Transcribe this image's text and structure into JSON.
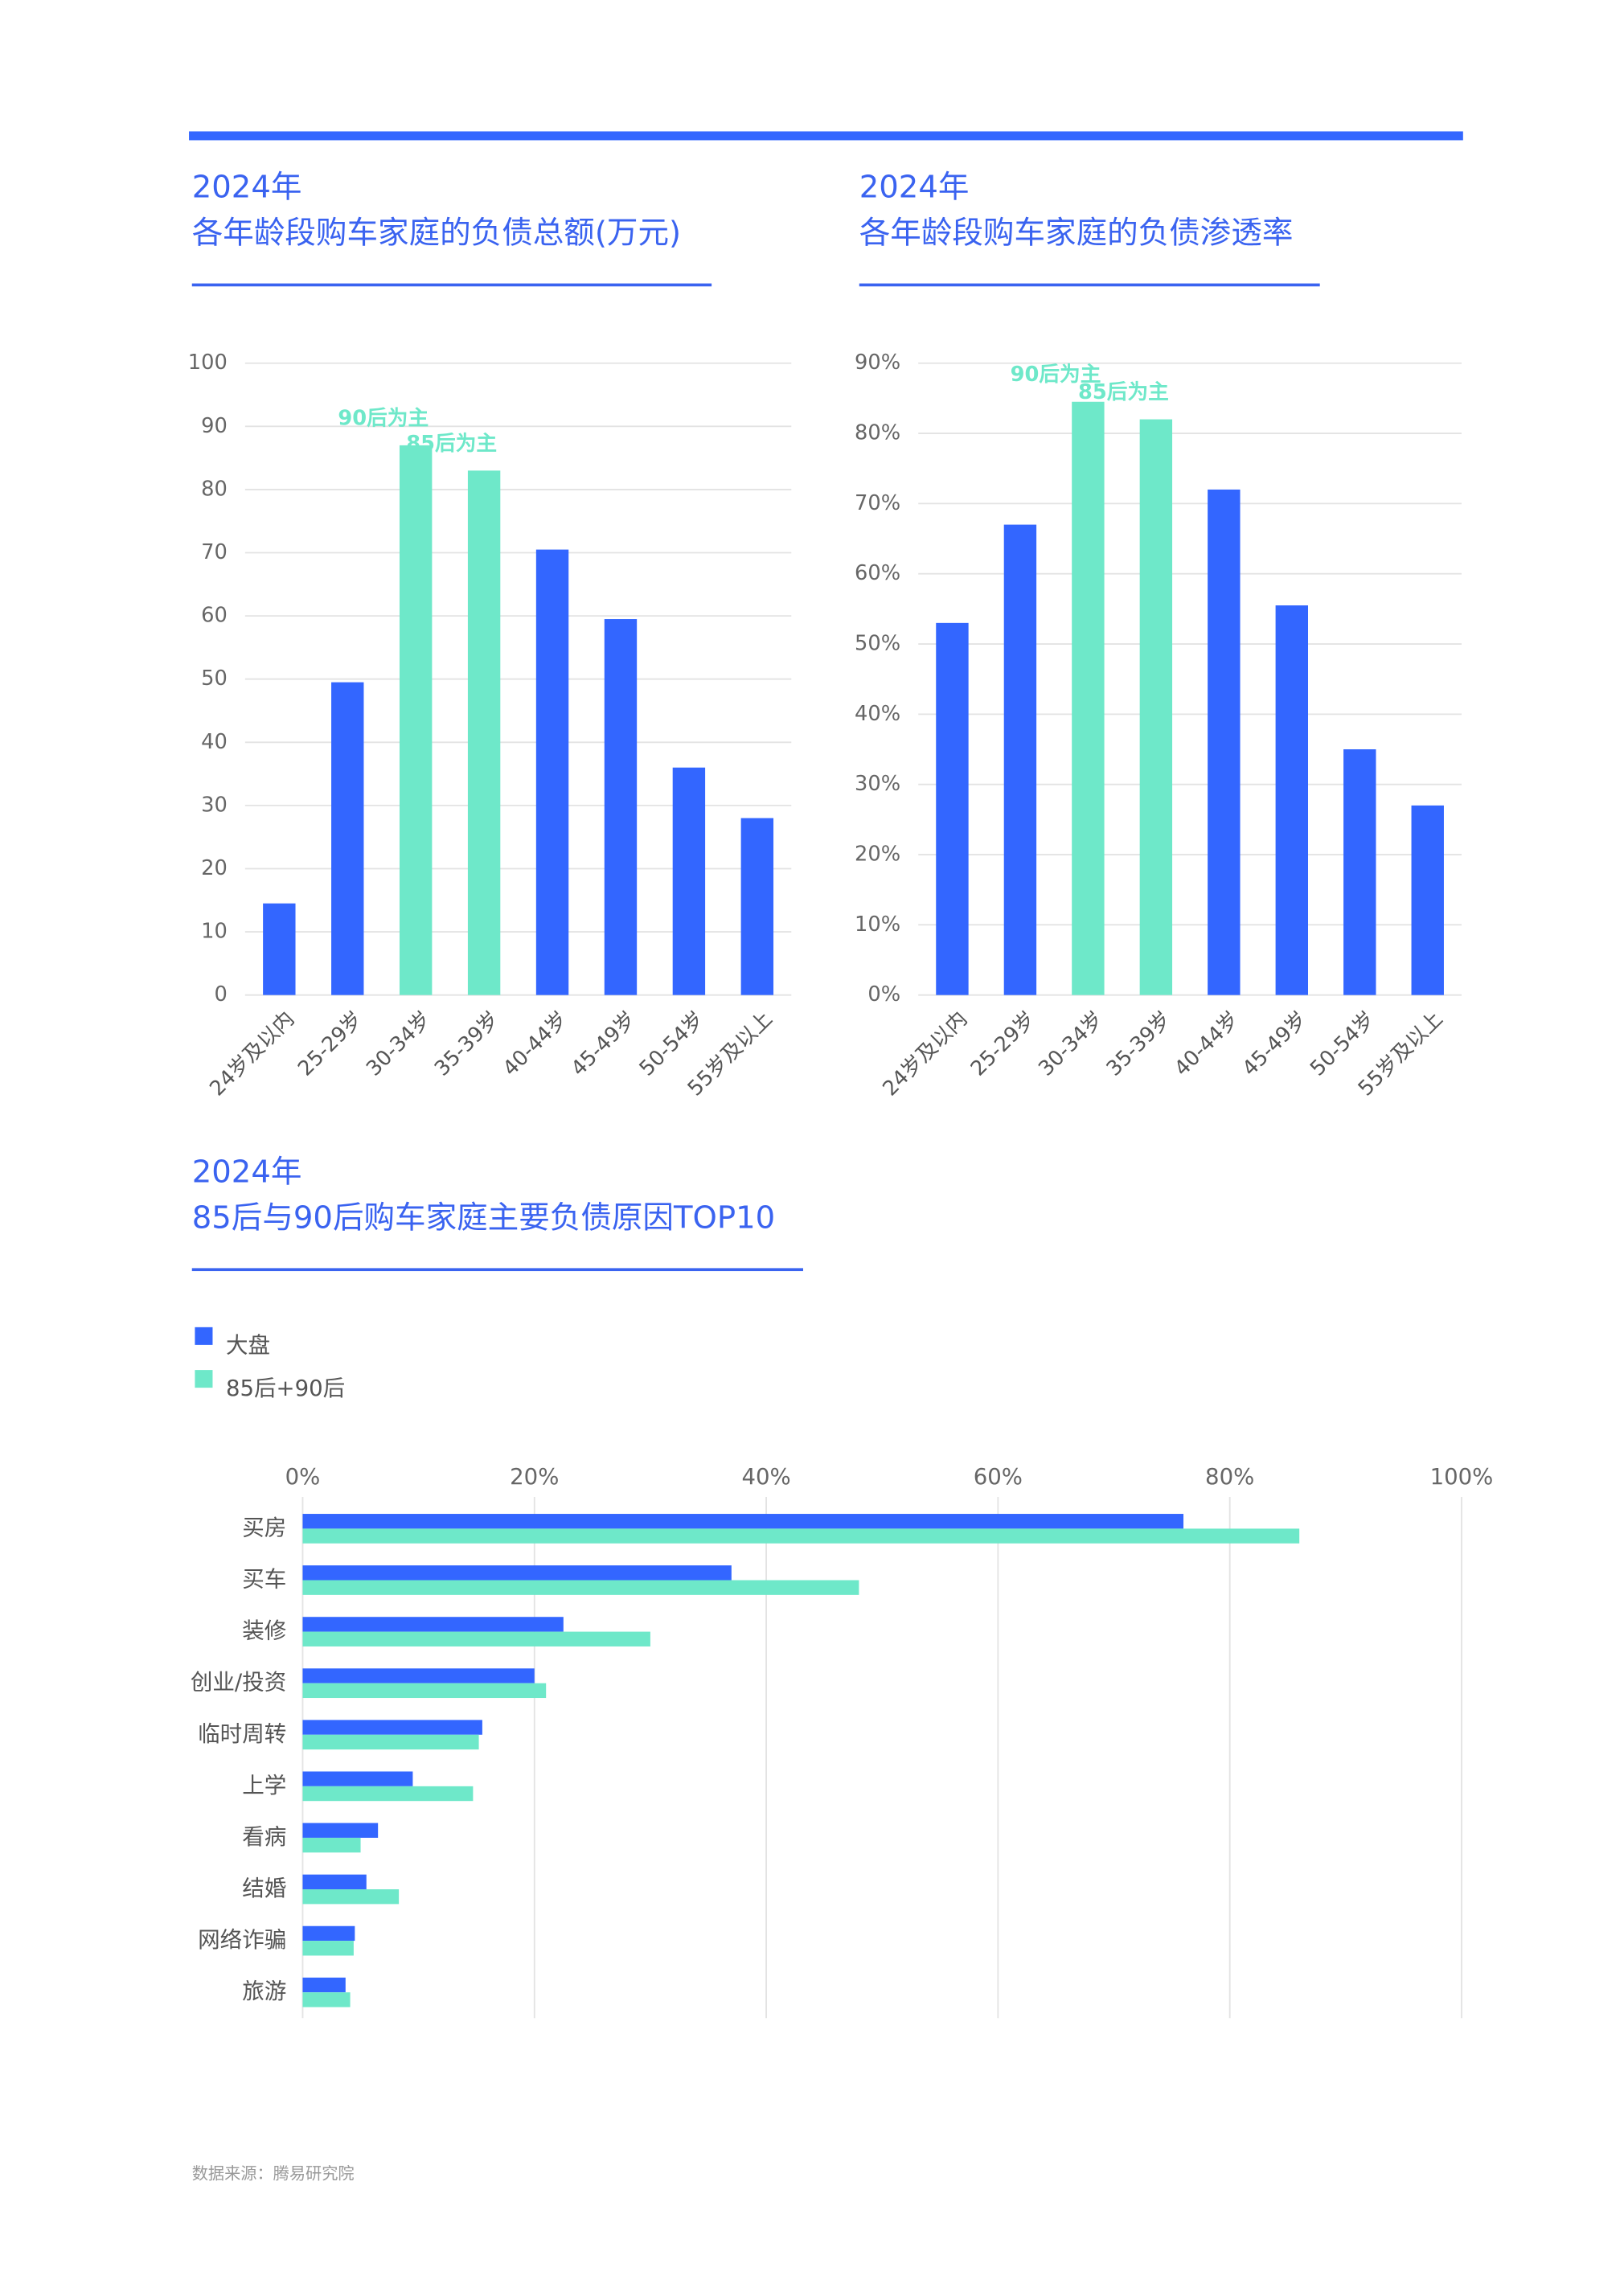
{
  "chart_data": [
    {
      "type": "bar",
      "title": "2024年",
      "subtitle": "各年龄段购车家庭的负债总额(万元)",
      "categories": [
        "24岁及以内",
        "25-29岁",
        "30-34岁",
        "35-39岁",
        "40-44岁",
        "45-49岁",
        "50-54岁",
        "55岁及以上"
      ],
      "values": [
        14.5,
        49.5,
        87,
        83,
        70.5,
        59.5,
        36,
        28
      ],
      "colors": [
        "#3366ff",
        "#3366ff",
        "#6ee8c9",
        "#6ee8c9",
        "#3366ff",
        "#3366ff",
        "#3366ff",
        "#3366ff"
      ],
      "ylim": [
        0,
        100
      ],
      "yticks": [
        0,
        10,
        20,
        30,
        40,
        50,
        60,
        70,
        80,
        90,
        100
      ],
      "grid": true,
      "annotations": [
        {
          "text": "90后为主",
          "category": "30-34岁"
        },
        {
          "text": "85后为主",
          "category": "35-39岁"
        }
      ]
    },
    {
      "type": "bar",
      "title": "2024年",
      "subtitle": "各年龄段购车家庭的负债渗透率",
      "categories": [
        "24岁及以内",
        "25-29岁",
        "30-34岁",
        "35-39岁",
        "40-44岁",
        "45-49岁",
        "50-54岁",
        "55岁及以上"
      ],
      "values": [
        53,
        67,
        84.5,
        82,
        72,
        55.5,
        35,
        27
      ],
      "colors": [
        "#3366ff",
        "#3366ff",
        "#6ee8c9",
        "#6ee8c9",
        "#3366ff",
        "#3366ff",
        "#3366ff",
        "#3366ff"
      ],
      "ylim": [
        0,
        90
      ],
      "yticks": [
        {
          "value": 0,
          "label": "0%"
        },
        {
          "value": 10,
          "label": "10%"
        },
        {
          "value": 20,
          "label": "20%"
        },
        {
          "value": 30,
          "label": "30%"
        },
        {
          "value": 40,
          "label": "40%"
        },
        {
          "value": 50,
          "label": "50%"
        },
        {
          "value": 60,
          "label": "60%"
        },
        {
          "value": 70,
          "label": "70%"
        },
        {
          "value": 80,
          "label": "80%"
        },
        {
          "value": 90,
          "label": "90%"
        }
      ],
      "grid": true,
      "annotations": [
        {
          "text": "90后为主",
          "category": "30-34岁"
        },
        {
          "text": "85后为主",
          "category": "35-39岁"
        }
      ]
    },
    {
      "type": "hbar",
      "title": "2024年",
      "subtitle": "85后与90后购车家庭主要负债原因TOP10",
      "categories": [
        "买房",
        "买车",
        "装修",
        "创业/投资",
        "临时周转",
        "上学",
        "看病",
        "结婚",
        "网络诈骗",
        "旅游"
      ],
      "series": [
        {
          "name": "大盘",
          "color": "#3366ff",
          "values": [
            76,
            37,
            22.5,
            20,
            15.5,
            9.5,
            6.5,
            5.5,
            4.5,
            3.7
          ]
        },
        {
          "name": "85后+90后",
          "color": "#6ee8c9",
          "values": [
            86,
            48,
            30,
            21,
            15.2,
            14.7,
            5,
            8.3,
            4.4,
            4.1
          ]
        }
      ],
      "xlim": [
        0,
        100
      ],
      "xticks": [
        {
          "value": 0,
          "label": "0%"
        },
        {
          "value": 20,
          "label": "20%"
        },
        {
          "value": 40,
          "label": "40%"
        },
        {
          "value": 60,
          "label": "60%"
        },
        {
          "value": 80,
          "label": "80%"
        },
        {
          "value": 100,
          "label": "100%"
        }
      ],
      "grid": true
    }
  ],
  "source": "数据来源：腾易研究院"
}
